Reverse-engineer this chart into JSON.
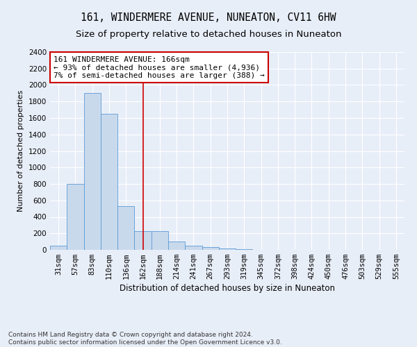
{
  "title": "161, WINDERMERE AVENUE, NUNEATON, CV11 6HW",
  "subtitle": "Size of property relative to detached houses in Nuneaton",
  "xlabel": "Distribution of detached houses by size in Nuneaton",
  "ylabel": "Number of detached properties",
  "categories": [
    "31sqm",
    "57sqm",
    "83sqm",
    "110sqm",
    "136sqm",
    "162sqm",
    "188sqm",
    "214sqm",
    "241sqm",
    "267sqm",
    "293sqm",
    "319sqm",
    "345sqm",
    "372sqm",
    "398sqm",
    "424sqm",
    "450sqm",
    "476sqm",
    "503sqm",
    "529sqm",
    "555sqm"
  ],
  "values": [
    50,
    800,
    1900,
    1650,
    530,
    230,
    230,
    100,
    50,
    30,
    20,
    5,
    0,
    0,
    0,
    0,
    0,
    0,
    0,
    0,
    0
  ],
  "bar_color": "#c9d9ec",
  "bar_edge_color": "#5b9bd5",
  "highlight_index": 5,
  "highlight_line_color": "#cc0000",
  "annotation_text": "161 WINDERMERE AVENUE: 166sqm\n← 93% of detached houses are smaller (4,936)\n7% of semi-detached houses are larger (388) →",
  "annotation_box_color": "#ffffff",
  "annotation_box_edge_color": "#cc0000",
  "ylim": [
    0,
    2400
  ],
  "yticks": [
    0,
    200,
    400,
    600,
    800,
    1000,
    1200,
    1400,
    1600,
    1800,
    2000,
    2200,
    2400
  ],
  "footer_text": "Contains HM Land Registry data © Crown copyright and database right 2024.\nContains public sector information licensed under the Open Government Licence v3.0.",
  "background_color": "#e8eef8",
  "plot_background_color": "#e8eef8",
  "title_fontsize": 10.5,
  "subtitle_fontsize": 9.5,
  "xlabel_fontsize": 8.5,
  "ylabel_fontsize": 8,
  "tick_fontsize": 7.5,
  "annotation_fontsize": 8,
  "footer_fontsize": 6.5
}
